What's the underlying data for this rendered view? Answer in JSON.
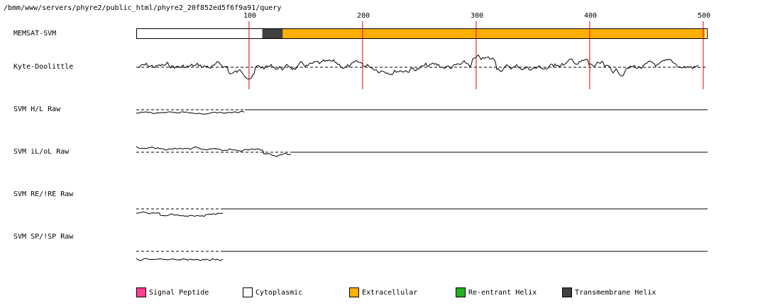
{
  "path": "/bmm/www/servers/phyre2/public_html/phyre2_20f852ed5f6f9a91/query",
  "axis": {
    "start": 1,
    "end": 500,
    "ticks": [
      100,
      200,
      300,
      400,
      500
    ]
  },
  "tracks": [
    {
      "label": "MEMSAT-SVM"
    },
    {
      "label": "Kyte-Doolittle"
    },
    {
      "label": "SVM H/L Raw"
    },
    {
      "label": "SVM iL/oL Raw"
    },
    {
      "label": "SVM RE/!RE Raw"
    },
    {
      "label": "SVM SP/!SP Raw"
    }
  ],
  "memsat_segments": [
    {
      "type": "Cytoplasmic",
      "start": 1,
      "end": 112
    },
    {
      "type": "Transmembrane Helix",
      "start": 112,
      "end": 130
    },
    {
      "type": "Extracellular",
      "start": 130,
      "end": 502
    }
  ],
  "legend": [
    {
      "label": "Signal Peptide",
      "color": "#ff3f8f"
    },
    {
      "label": "Cytoplasmic",
      "color": "#ffffff"
    },
    {
      "label": "Extracellular",
      "color": "#ffb000"
    },
    {
      "label": "Re-entrant Helix",
      "color": "#22b022"
    },
    {
      "label": "Transmembrane Helix",
      "color": "#404040"
    }
  ],
  "colors": {
    "marker": "#e00000",
    "cytoplasmic": "#ffffff",
    "extracellular": "#ffb000",
    "tm_helix": "#404040"
  }
}
